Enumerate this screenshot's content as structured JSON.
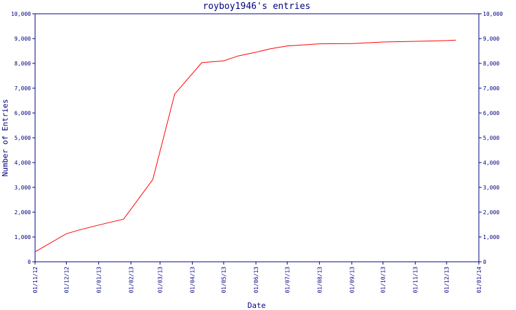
{
  "chart_data": {
    "type": "line",
    "title": "royboy1946's entries",
    "xlabel": "Date",
    "ylabel": "Number of Entries",
    "ylim": [
      0,
      10000
    ],
    "xlim": [
      "2012-11-01",
      "2014-01-01"
    ],
    "x_ticks": [
      "01/11/12",
      "01/12/12",
      "01/01/13",
      "01/02/13",
      "01/03/13",
      "01/04/13",
      "01/05/13",
      "01/06/13",
      "01/07/13",
      "01/08/13",
      "01/09/13",
      "01/10/13",
      "01/11/13",
      "01/12/13",
      "01/01/14"
    ],
    "y_ticks": [
      "0",
      "1,000",
      "2,000",
      "3,000",
      "4,000",
      "5,000",
      "6,000",
      "7,000",
      "8,000",
      "9,000",
      "10,000"
    ],
    "grid": false,
    "series": [
      {
        "color": "#ff0000",
        "x": [
          "2012-11-01",
          "2012-12-01",
          "2012-12-15",
          "2013-01-01",
          "2013-01-25",
          "2013-02-22",
          "2013-03-15",
          "2013-04-10",
          "2013-05-01",
          "2013-05-15",
          "2013-06-01",
          "2013-06-15",
          "2013-07-01",
          "2013-08-01",
          "2013-09-01",
          "2013-10-01",
          "2013-11-01",
          "2013-12-01",
          "2013-12-10"
        ],
        "y": [
          400,
          1130,
          1300,
          1480,
          1720,
          3320,
          6760,
          8030,
          8100,
          8300,
          8450,
          8590,
          8700,
          8790,
          8800,
          8860,
          8890,
          8920,
          8940
        ]
      }
    ]
  }
}
